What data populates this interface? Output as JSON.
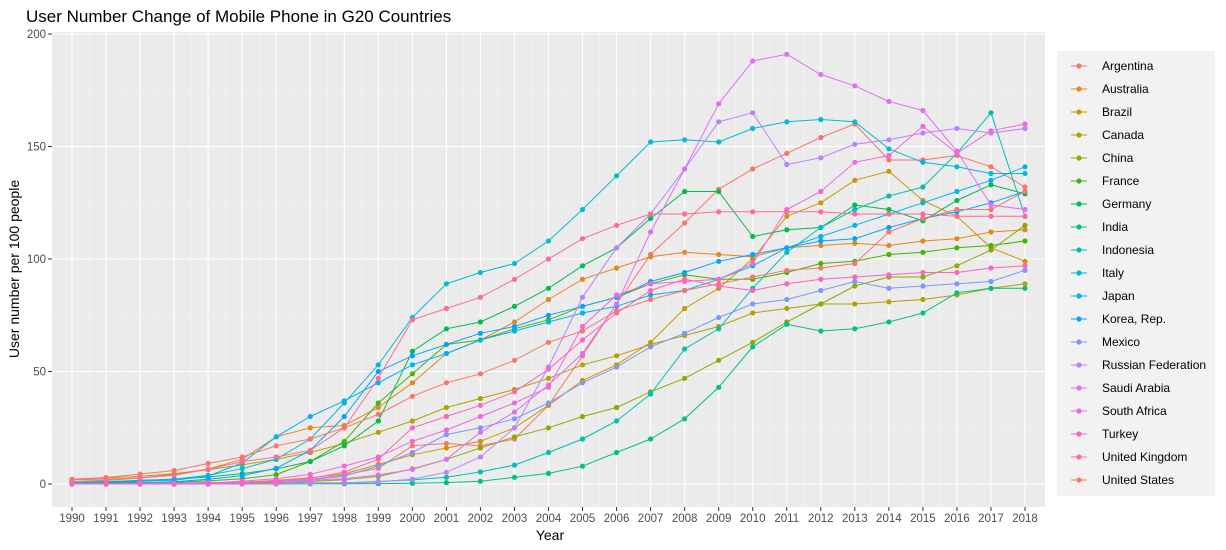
{
  "chart_data": {
    "type": "line",
    "title": "User Number Change of Mobile Phone in G20 Countries",
    "xlabel": "Year",
    "ylabel": "User number per 100 people",
    "ylim": [
      0,
      200
    ],
    "yticks": [
      0,
      50,
      100,
      150,
      200
    ],
    "grid": true,
    "legend_position": "right",
    "x": [
      1990,
      1991,
      1992,
      1993,
      1994,
      1995,
      1996,
      1997,
      1998,
      1999,
      2000,
      2001,
      2002,
      2003,
      2004,
      2005,
      2006,
      2007,
      2008,
      2009,
      2010,
      2011,
      2012,
      2013,
      2014,
      2015,
      2016,
      2017,
      2018
    ],
    "series": [
      {
        "name": "Argentina",
        "color": "#F8766D",
        "values": [
          0,
          0.1,
          0.1,
          0.1,
          0.2,
          0.5,
          1,
          2,
          4,
          7,
          17,
          18,
          17,
          20,
          35,
          57,
          80,
          102,
          116,
          131,
          140,
          147,
          154,
          160,
          144,
          144,
          146,
          141,
          132
        ]
      },
      {
        "name": "Australia",
        "color": "#E7851E",
        "values": [
          1.1,
          1.7,
          2.6,
          4.3,
          6.6,
          11,
          21,
          25,
          26,
          34,
          45,
          58,
          64,
          72,
          82,
          91,
          96,
          101,
          103,
          102,
          101,
          105,
          106,
          107,
          106,
          108,
          109,
          112,
          113
        ]
      },
      {
        "name": "Brazil",
        "color": "#D09400",
        "values": [
          0,
          0,
          0,
          0,
          0.1,
          0.8,
          1.6,
          2.8,
          4.5,
          8.7,
          13,
          16,
          19,
          25,
          35,
          46,
          53,
          63,
          78,
          87,
          100,
          119,
          125,
          135,
          139,
          126,
          119,
          105,
          99
        ]
      },
      {
        "name": "Canada",
        "color": "#B2A100",
        "values": [
          2.1,
          2.7,
          3.4,
          4.6,
          6.3,
          8.5,
          11,
          14,
          18,
          23,
          28,
          34,
          38,
          42,
          47,
          53,
          57,
          62,
          66,
          70,
          76,
          78,
          80,
          80,
          81,
          82,
          84,
          87,
          89
        ]
      },
      {
        "name": "China",
        "color": "#89AC00",
        "values": [
          0,
          0,
          0,
          0.1,
          0.1,
          0.3,
          0.6,
          1.1,
          1.9,
          3.4,
          6.7,
          11,
          16,
          21,
          25,
          30,
          34,
          41,
          47,
          55,
          63,
          72,
          80,
          88,
          92,
          92,
          97,
          104,
          115
        ]
      },
      {
        "name": "France",
        "color": "#45B500",
        "values": [
          0.5,
          0.6,
          0.7,
          0.8,
          1.4,
          2.3,
          4.2,
          10,
          19,
          36,
          49,
          62,
          64,
          69,
          73,
          79,
          83,
          89,
          93,
          91,
          91,
          94,
          98,
          99,
          102,
          103,
          105,
          106,
          108
        ]
      },
      {
        "name": "Germany",
        "color": "#00BC51",
        "values": [
          0.3,
          0.7,
          1.2,
          2.2,
          3.1,
          4.6,
          6.7,
          10,
          17,
          28,
          59,
          69,
          72,
          79,
          87,
          97,
          105,
          118,
          130,
          130,
          110,
          113,
          114,
          124,
          122,
          117,
          126,
          133,
          129
        ]
      },
      {
        "name": "India",
        "color": "#00C087",
        "values": [
          0,
          0,
          0,
          0,
          0,
          0,
          0,
          0.1,
          0.1,
          0.2,
          0.3,
          0.6,
          1.2,
          3,
          4.7,
          7.9,
          14,
          20,
          29,
          43,
          61,
          71,
          68,
          69,
          72,
          76,
          85,
          87,
          87
        ]
      },
      {
        "name": "Indonesia",
        "color": "#00C0B2",
        "values": [
          0,
          0,
          0,
          0,
          0,
          0.1,
          0.3,
          0.5,
          0.5,
          1.1,
          1.8,
          3,
          5.4,
          8.4,
          14,
          20,
          28,
          40,
          60,
          69,
          87,
          103,
          114,
          122,
          128,
          132,
          147,
          165,
          119
        ]
      },
      {
        "name": "Italy",
        "color": "#00BCD6",
        "values": [
          0.5,
          1,
          1.7,
          2.2,
          3.8,
          6.8,
          11,
          20,
          36,
          53,
          74,
          89,
          94,
          98,
          108,
          122,
          137,
          152,
          153,
          152,
          158,
          161,
          162,
          161,
          149,
          143,
          141,
          138,
          138
        ]
      },
      {
        "name": "Japan",
        "color": "#00B3F2",
        "values": [
          0.7,
          1.1,
          1.4,
          1.7,
          3.5,
          9.4,
          21,
          30,
          37,
          45,
          53,
          58,
          64,
          68,
          72,
          76,
          79,
          84,
          86,
          91,
          97,
          105,
          110,
          115,
          120,
          125,
          130,
          135,
          141
        ]
      },
      {
        "name": "Korea, Rep.",
        "color": "#00A5FF",
        "values": [
          0.2,
          0.4,
          0.6,
          1,
          2.1,
          3.7,
          7,
          15,
          30,
          50,
          57,
          62,
          67,
          70,
          75,
          79,
          83,
          90,
          94,
          99,
          102,
          105,
          108,
          109,
          114,
          118,
          121,
          125,
          130
        ]
      },
      {
        "name": "Mexico",
        "color": "#7F96FF",
        "values": [
          0.1,
          0.2,
          0.4,
          0.4,
          0.7,
          0.7,
          1.1,
          1.8,
          3.5,
          8,
          14,
          22,
          25,
          29,
          36,
          45,
          52,
          61,
          67,
          74,
          80,
          82,
          86,
          90,
          87,
          88,
          89,
          90,
          95
        ]
      },
      {
        "name": "Russian Federation",
        "color": "#BC81FF",
        "values": [
          0,
          0,
          0,
          0,
          0,
          0.1,
          0.2,
          0.3,
          0.5,
          0.9,
          2.2,
          5.2,
          12,
          25,
          52,
          83,
          105,
          120,
          140,
          161,
          165,
          142,
          145,
          151,
          153,
          156,
          158,
          156,
          158
        ]
      },
      {
        "name": "Saudi Arabia",
        "color": "#E26EF7",
        "values": [
          0.1,
          0.1,
          0.1,
          0.1,
          0.1,
          0.1,
          0.2,
          1.6,
          2.4,
          4,
          6.5,
          11,
          23,
          32,
          44,
          58,
          80,
          112,
          140,
          169,
          188,
          191,
          182,
          177,
          170,
          166,
          148,
          124,
          122
        ]
      },
      {
        "name": "South Africa",
        "color": "#F863DF",
        "values": [
          0,
          0,
          0,
          0.1,
          0.3,
          1.3,
          2.3,
          4.3,
          8,
          12,
          19,
          24,
          30,
          36,
          43,
          70,
          84,
          89,
          90,
          91,
          98,
          122,
          130,
          143,
          146,
          159,
          147,
          157,
          160
        ]
      },
      {
        "name": "Turkey",
        "color": "#FF62BF",
        "values": [
          0,
          0.1,
          0.1,
          0.2,
          0.3,
          0.7,
          1.3,
          2.5,
          5.3,
          11,
          25,
          30,
          35,
          41,
          51,
          64,
          76,
          86,
          91,
          88,
          86,
          89,
          91,
          92,
          93,
          94,
          94,
          96,
          97
        ]
      },
      {
        "name": "United Kingdom",
        "color": "#FF6A9A",
        "values": [
          1.9,
          2.2,
          2.7,
          3.8,
          6.6,
          9.9,
          12,
          15,
          25,
          47,
          73,
          78,
          83,
          91,
          100,
          109,
          115,
          120,
          120,
          121,
          121,
          121,
          121,
          120,
          120,
          120,
          119,
          119,
          119
        ]
      },
      {
        "name": "United States",
        "color": "#F8766D",
        "values": [
          2.1,
          2.9,
          4.4,
          6,
          9.1,
          12,
          17,
          20,
          25,
          31,
          39,
          45,
          49,
          55,
          63,
          68,
          77,
          82,
          86,
          89,
          92,
          95,
          96,
          98,
          112,
          118,
          122,
          122,
          130
        ]
      }
    ]
  }
}
